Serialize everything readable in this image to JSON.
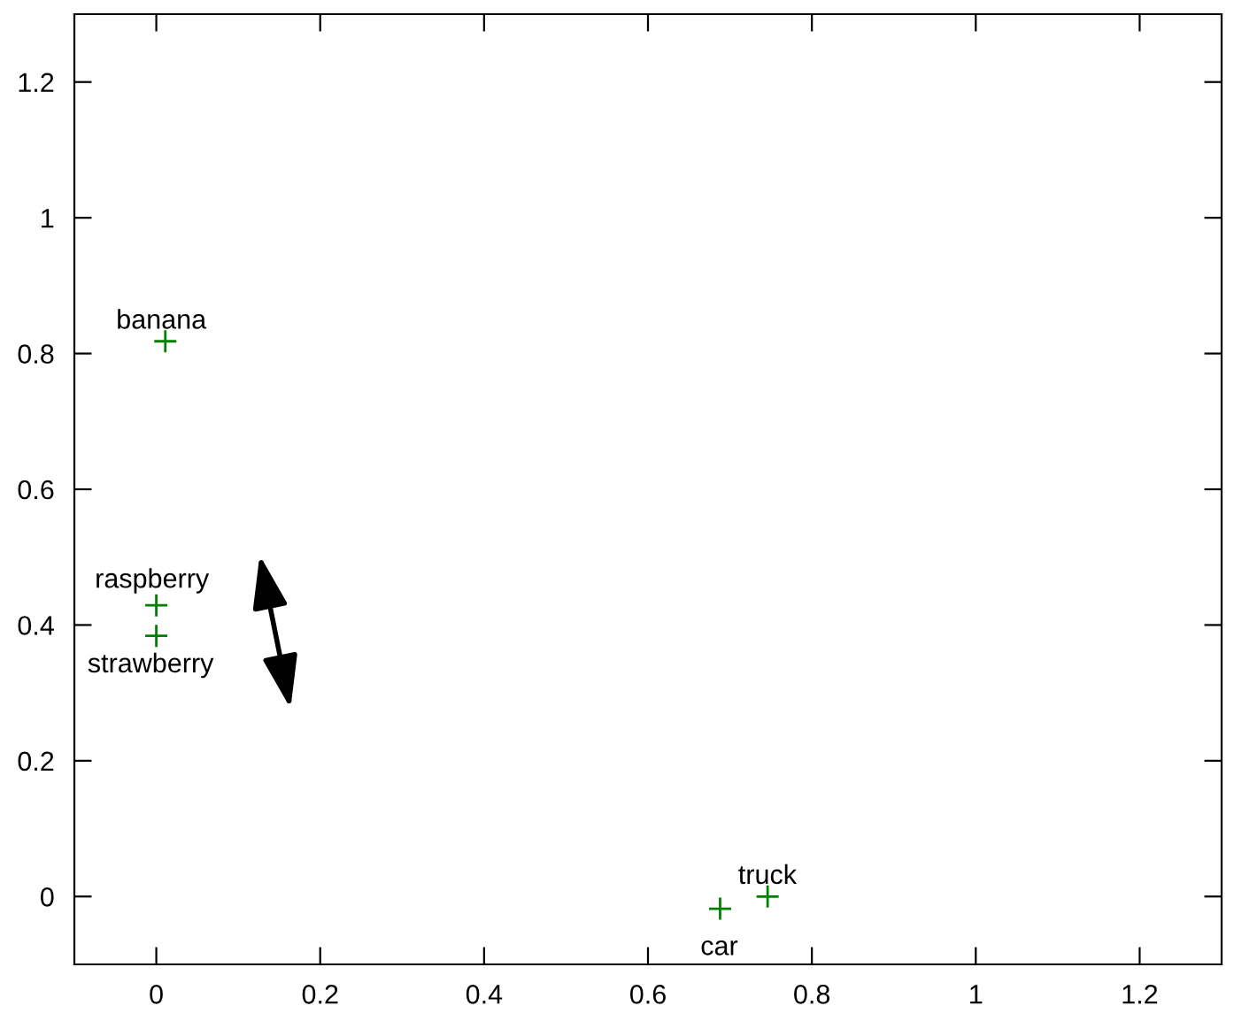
{
  "chart_data": {
    "type": "scatter",
    "x": [
      0.011,
      0,
      0,
      0.688,
      0.746
    ],
    "values": [
      0.818,
      0.429,
      0.384,
      -0.018,
      0
    ],
    "color": "#008000",
    "marker": "cross",
    "xlim": [
      -0.1,
      1.3
    ],
    "ylim": [
      -0.1,
      1.3
    ],
    "xticks": [
      0,
      0.2,
      0.4,
      0.6,
      0.8,
      1,
      1.2
    ],
    "yticks": [
      0,
      0.2,
      0.4,
      0.6,
      0.8,
      1,
      1.2
    ],
    "tick_labels": "xy",
    "grid": false,
    "legend": false,
    "annotations": [
      {
        "text": "banana",
        "x": 0.011,
        "y": 0.818
      },
      {
        "text": "raspberry",
        "x": 0,
        "y": 0.429
      },
      {
        "text": "strawberry",
        "x": 0,
        "y": 0.384
      },
      {
        "text": "car",
        "x": 0.688,
        "y": -0.018
      },
      {
        "text": "truck",
        "x": 0.746,
        "y": 0
      }
    ]
  }
}
